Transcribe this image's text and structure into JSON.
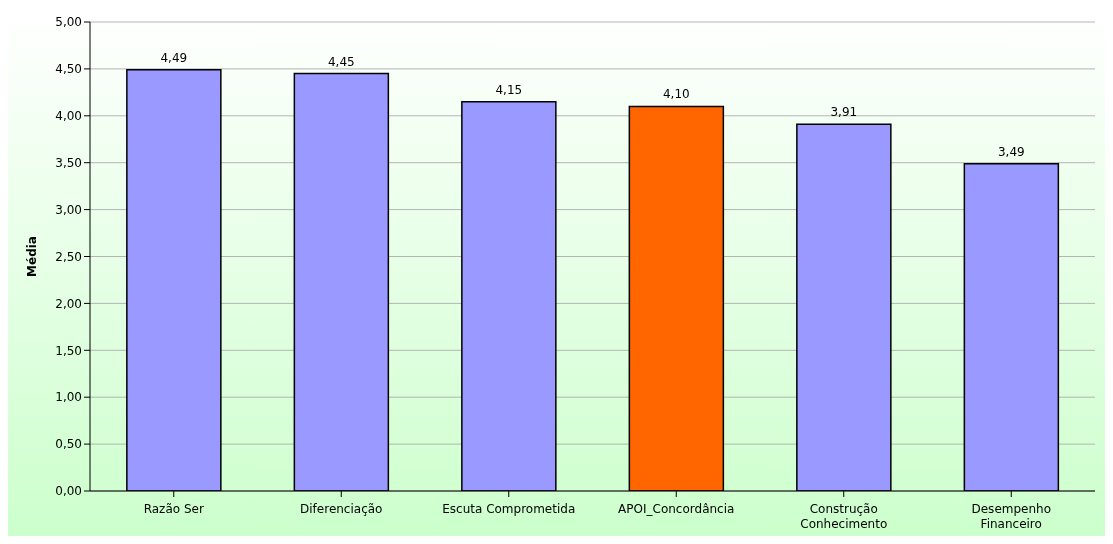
{
  "chart_data": {
    "type": "bar",
    "ylabel": "Média",
    "categories": [
      "Razão Ser",
      "Diferenciação",
      "Escuta Comprometida",
      "APOI_Concordância",
      "Construção Conhecimento",
      "Desempenho Financeiro"
    ],
    "values": [
      4.49,
      4.45,
      4.15,
      4.1,
      3.91,
      3.49
    ],
    "colors": [
      "#9999ff",
      "#9999ff",
      "#9999ff",
      "#ff6600",
      "#9999ff",
      "#9999ff"
    ],
    "value_labels": [
      "4,49",
      "4,45",
      "4,15",
      "4,10",
      "3,91",
      "3,49"
    ],
    "ylim": [
      0,
      5
    ],
    "yticks": [
      {
        "value": 0,
        "label": "0,00"
      },
      {
        "value": 0.5,
        "label": "0,50"
      },
      {
        "value": 1,
        "label": "1,00"
      },
      {
        "value": 1.5,
        "label": "1,50"
      },
      {
        "value": 2,
        "label": "2,00"
      },
      {
        "value": 2.5,
        "label": "2,50"
      },
      {
        "value": 3,
        "label": "3,00"
      },
      {
        "value": 3.5,
        "label": "3,50"
      },
      {
        "value": 4,
        "label": "4,00"
      },
      {
        "value": 4.5,
        "label": "4,50"
      },
      {
        "value": 5,
        "label": "5,00"
      }
    ],
    "grid": "y",
    "legend": false
  }
}
